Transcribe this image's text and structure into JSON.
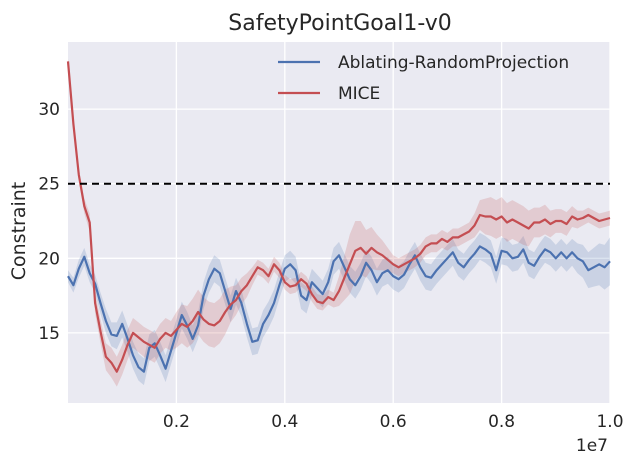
{
  "chart_data": {
    "type": "line",
    "title": "SafetyPointGoal1-v0",
    "xlabel": "",
    "ylabel": "Constraint",
    "x_offset_label": "1e7",
    "xlim": [
      0.0,
      1.0
    ],
    "ylim": [
      10.3,
      34.5
    ],
    "xticks": [
      0.2,
      0.4,
      0.6,
      0.8,
      1.0
    ],
    "xtick_labels": [
      "0.2",
      "0.4",
      "0.6",
      "0.8",
      "1.0"
    ],
    "yticks": [
      15,
      20,
      25,
      30
    ],
    "ytick_labels": [
      "15",
      "20",
      "25",
      "30"
    ],
    "grid": true,
    "legend_position": "top-right",
    "threshold": {
      "y": 25,
      "style": "dashed",
      "color": "#000000"
    },
    "colors": {
      "background": "#eaeaf2",
      "grid": "#ffffff",
      "series_a": "#4c72b0",
      "series_b": "#c44e52"
    },
    "series": [
      {
        "name": "Ablating-RandomProjection",
        "color": "#4c72b0",
        "points": [
          [
            0.0,
            18.8
          ],
          [
            0.01,
            18.2
          ],
          [
            0.02,
            19.3
          ],
          [
            0.03,
            20.1
          ],
          [
            0.04,
            19.0
          ],
          [
            0.05,
            18.3
          ],
          [
            0.06,
            17.0
          ],
          [
            0.07,
            15.8
          ],
          [
            0.08,
            14.9
          ],
          [
            0.09,
            14.8
          ],
          [
            0.1,
            15.6
          ],
          [
            0.11,
            14.6
          ],
          [
            0.12,
            13.5
          ],
          [
            0.13,
            12.7
          ],
          [
            0.14,
            12.4
          ],
          [
            0.15,
            14.0
          ],
          [
            0.16,
            14.3
          ],
          [
            0.17,
            13.5
          ],
          [
            0.18,
            12.6
          ],
          [
            0.19,
            13.8
          ],
          [
            0.2,
            15.0
          ],
          [
            0.21,
            16.2
          ],
          [
            0.22,
            15.5
          ],
          [
            0.23,
            14.6
          ],
          [
            0.24,
            15.5
          ],
          [
            0.25,
            17.5
          ],
          [
            0.26,
            18.6
          ],
          [
            0.27,
            19.3
          ],
          [
            0.28,
            19.0
          ],
          [
            0.29,
            17.8
          ],
          [
            0.3,
            16.6
          ],
          [
            0.31,
            17.8
          ],
          [
            0.32,
            17.0
          ],
          [
            0.33,
            15.6
          ],
          [
            0.34,
            14.4
          ],
          [
            0.35,
            14.5
          ],
          [
            0.36,
            15.6
          ],
          [
            0.37,
            16.2
          ],
          [
            0.38,
            17.0
          ],
          [
            0.39,
            18.2
          ],
          [
            0.4,
            19.3
          ],
          [
            0.41,
            19.6
          ],
          [
            0.42,
            19.2
          ],
          [
            0.43,
            17.5
          ],
          [
            0.44,
            17.2
          ],
          [
            0.45,
            18.4
          ],
          [
            0.46,
            18.0
          ],
          [
            0.47,
            17.6
          ],
          [
            0.48,
            18.4
          ],
          [
            0.49,
            19.8
          ],
          [
            0.5,
            20.2
          ],
          [
            0.51,
            19.4
          ],
          [
            0.52,
            18.6
          ],
          [
            0.53,
            18.2
          ],
          [
            0.54,
            18.8
          ],
          [
            0.55,
            19.7
          ],
          [
            0.56,
            19.2
          ],
          [
            0.57,
            18.4
          ],
          [
            0.58,
            19.0
          ],
          [
            0.59,
            19.2
          ],
          [
            0.6,
            18.8
          ],
          [
            0.61,
            18.6
          ],
          [
            0.62,
            18.9
          ],
          [
            0.63,
            19.6
          ],
          [
            0.64,
            20.2
          ],
          [
            0.65,
            19.4
          ],
          [
            0.66,
            18.8
          ],
          [
            0.67,
            18.7
          ],
          [
            0.68,
            19.2
          ],
          [
            0.69,
            19.6
          ],
          [
            0.7,
            20.0
          ],
          [
            0.71,
            20.4
          ],
          [
            0.72,
            19.7
          ],
          [
            0.73,
            19.4
          ],
          [
            0.74,
            19.9
          ],
          [
            0.75,
            20.3
          ],
          [
            0.76,
            20.8
          ],
          [
            0.77,
            20.6
          ],
          [
            0.78,
            20.3
          ],
          [
            0.79,
            19.2
          ],
          [
            0.8,
            20.5
          ],
          [
            0.81,
            20.4
          ],
          [
            0.82,
            20.0
          ],
          [
            0.83,
            20.1
          ],
          [
            0.84,
            20.6
          ],
          [
            0.85,
            19.7
          ],
          [
            0.86,
            19.5
          ],
          [
            0.87,
            20.1
          ],
          [
            0.88,
            20.6
          ],
          [
            0.89,
            20.4
          ],
          [
            0.9,
            20.0
          ],
          [
            0.91,
            20.4
          ],
          [
            0.92,
            20.0
          ],
          [
            0.93,
            20.4
          ],
          [
            0.94,
            20.0
          ],
          [
            0.95,
            19.8
          ],
          [
            0.96,
            19.2
          ],
          [
            0.97,
            19.4
          ],
          [
            0.98,
            19.6
          ],
          [
            0.99,
            19.4
          ],
          [
            1.0,
            19.8
          ]
        ],
        "band_width": [
          0.4,
          0.5,
          0.6,
          0.6,
          0.6,
          0.6,
          0.7,
          0.8,
          0.8,
          0.9,
          0.9,
          0.9,
          0.9,
          0.9,
          0.9,
          0.9,
          0.9,
          0.9,
          0.9,
          0.9,
          0.9,
          0.9,
          0.9,
          0.9,
          0.9,
          0.9,
          0.9,
          0.9,
          0.9,
          0.9,
          0.9,
          0.9,
          0.9,
          0.9,
          0.9,
          0.9,
          0.9,
          0.9,
          0.9,
          0.9,
          0.9,
          0.9,
          0.9,
          0.9,
          0.9,
          0.9,
          0.9,
          0.9,
          0.9,
          0.9,
          0.9,
          0.9,
          0.9,
          0.9,
          0.9,
          0.9,
          0.9,
          0.9,
          0.9,
          0.9,
          0.9,
          0.9,
          0.9,
          0.9,
          0.9,
          0.9,
          0.9,
          0.9,
          0.9,
          0.9,
          0.9,
          0.9,
          0.9,
          0.9,
          0.9,
          0.9,
          0.9,
          0.9,
          0.9,
          0.9,
          0.9,
          0.9,
          0.9,
          0.9,
          0.9,
          0.9,
          0.9,
          0.9,
          0.9,
          0.9,
          0.9,
          0.9,
          0.9,
          0.9,
          1.0,
          1.1,
          1.2,
          1.3,
          1.4,
          1.5,
          1.6
        ]
      },
      {
        "name": "MICE",
        "color": "#c44e52",
        "points": [
          [
            0.0,
            33.2
          ],
          [
            0.01,
            29.0
          ],
          [
            0.02,
            25.6
          ],
          [
            0.03,
            23.5
          ],
          [
            0.04,
            22.4
          ],
          [
            0.05,
            17.0
          ],
          [
            0.06,
            15.1
          ],
          [
            0.07,
            13.4
          ],
          [
            0.08,
            13.0
          ],
          [
            0.09,
            12.4
          ],
          [
            0.1,
            13.2
          ],
          [
            0.11,
            14.2
          ],
          [
            0.12,
            15.0
          ],
          [
            0.13,
            14.7
          ],
          [
            0.14,
            14.4
          ],
          [
            0.15,
            14.2
          ],
          [
            0.16,
            14.0
          ],
          [
            0.17,
            14.6
          ],
          [
            0.18,
            15.0
          ],
          [
            0.19,
            14.8
          ],
          [
            0.2,
            15.2
          ],
          [
            0.21,
            15.6
          ],
          [
            0.22,
            15.4
          ],
          [
            0.23,
            15.8
          ],
          [
            0.24,
            16.4
          ],
          [
            0.25,
            15.9
          ],
          [
            0.26,
            15.6
          ],
          [
            0.27,
            15.5
          ],
          [
            0.28,
            15.8
          ],
          [
            0.29,
            16.4
          ],
          [
            0.3,
            16.9
          ],
          [
            0.31,
            17.2
          ],
          [
            0.32,
            17.8
          ],
          [
            0.33,
            18.2
          ],
          [
            0.34,
            18.8
          ],
          [
            0.35,
            19.4
          ],
          [
            0.36,
            19.2
          ],
          [
            0.37,
            18.8
          ],
          [
            0.38,
            19.6
          ],
          [
            0.39,
            19.2
          ],
          [
            0.4,
            18.4
          ],
          [
            0.41,
            18.1
          ],
          [
            0.42,
            18.2
          ],
          [
            0.43,
            18.6
          ],
          [
            0.44,
            18.3
          ],
          [
            0.45,
            17.6
          ],
          [
            0.46,
            17.1
          ],
          [
            0.47,
            17.0
          ],
          [
            0.48,
            17.4
          ],
          [
            0.49,
            17.2
          ],
          [
            0.5,
            17.8
          ],
          [
            0.51,
            18.7
          ],
          [
            0.52,
            19.6
          ],
          [
            0.53,
            20.5
          ],
          [
            0.54,
            20.7
          ],
          [
            0.55,
            20.3
          ],
          [
            0.56,
            20.7
          ],
          [
            0.57,
            20.4
          ],
          [
            0.58,
            20.2
          ],
          [
            0.59,
            19.9
          ],
          [
            0.6,
            19.6
          ],
          [
            0.61,
            19.4
          ],
          [
            0.62,
            19.6
          ],
          [
            0.63,
            19.8
          ],
          [
            0.64,
            20.0
          ],
          [
            0.65,
            20.3
          ],
          [
            0.66,
            20.8
          ],
          [
            0.67,
            21.0
          ],
          [
            0.68,
            21.0
          ],
          [
            0.69,
            21.3
          ],
          [
            0.7,
            21.1
          ],
          [
            0.71,
            21.4
          ],
          [
            0.72,
            21.4
          ],
          [
            0.73,
            21.6
          ],
          [
            0.74,
            21.8
          ],
          [
            0.75,
            22.2
          ],
          [
            0.76,
            22.9
          ],
          [
            0.77,
            22.8
          ],
          [
            0.78,
            22.8
          ],
          [
            0.79,
            22.6
          ],
          [
            0.8,
            22.8
          ],
          [
            0.81,
            22.4
          ],
          [
            0.82,
            22.6
          ],
          [
            0.83,
            22.4
          ],
          [
            0.84,
            22.2
          ],
          [
            0.85,
            22.0
          ],
          [
            0.86,
            22.4
          ],
          [
            0.87,
            22.4
          ],
          [
            0.88,
            22.6
          ],
          [
            0.89,
            22.3
          ],
          [
            0.9,
            22.5
          ],
          [
            0.91,
            22.5
          ],
          [
            0.92,
            22.3
          ],
          [
            0.93,
            22.8
          ],
          [
            0.94,
            22.6
          ],
          [
            0.95,
            22.7
          ],
          [
            0.96,
            22.9
          ],
          [
            0.97,
            22.7
          ],
          [
            0.98,
            22.5
          ],
          [
            0.99,
            22.6
          ],
          [
            1.0,
            22.7
          ]
        ],
        "band_width": [
          0.2,
          0.3,
          0.4,
          0.5,
          0.6,
          0.7,
          0.8,
          0.9,
          1.0,
          1.0,
          1.0,
          1.0,
          1.0,
          1.0,
          1.0,
          1.0,
          1.0,
          1.0,
          1.0,
          1.0,
          1.2,
          1.3,
          1.4,
          1.5,
          1.5,
          1.5,
          1.5,
          1.5,
          1.5,
          1.5,
          1.2,
          1.0,
          0.9,
          0.8,
          0.6,
          0.5,
          0.5,
          0.5,
          0.5,
          0.5,
          0.5,
          0.5,
          0.5,
          0.5,
          0.5,
          0.5,
          0.5,
          0.5,
          0.5,
          0.5,
          1.0,
          1.5,
          2.0,
          2.0,
          1.8,
          1.6,
          1.4,
          1.2,
          1.0,
          0.8,
          0.6,
          0.6,
          0.6,
          0.6,
          0.6,
          0.6,
          0.6,
          0.6,
          0.6,
          0.6,
          0.6,
          0.6,
          0.6,
          0.6,
          0.6,
          0.8,
          1.0,
          1.2,
          1.3,
          1.3,
          1.3,
          1.3,
          1.3,
          1.3,
          1.3,
          1.2,
          1.0,
          1.0,
          1.0,
          0.9,
          0.8,
          0.8,
          0.8,
          0.7,
          0.6,
          0.5,
          0.5,
          0.5,
          0.5,
          0.5,
          0.5
        ]
      }
    ]
  }
}
